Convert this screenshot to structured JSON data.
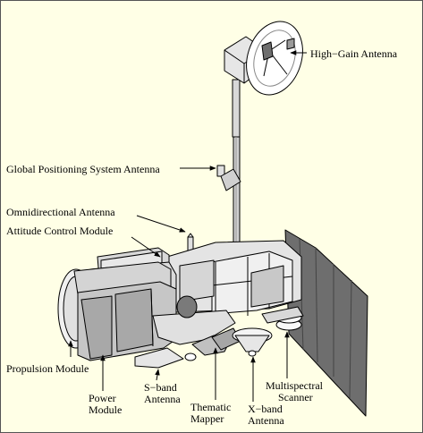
{
  "labels": {
    "high_gain_antenna": "High−Gain Antenna",
    "gps_antenna": "Global Positioning System Antenna",
    "omni_antenna": "Omnidirectional Antenna",
    "attitude_control": "Attitude Control Module",
    "propulsion_module": "Propulsion Module",
    "power_module": [
      "Power",
      "Module"
    ],
    "s_band_antenna": [
      "S−band",
      "Antenna"
    ],
    "thematic_mapper": [
      "Thematic",
      "Mapper"
    ],
    "x_band_antenna": [
      "X−band",
      "Antenna"
    ],
    "multispectral_scanner": [
      "Multispectral",
      "Scanner"
    ]
  },
  "colors": {
    "background": "#FFFFE6",
    "body_fill": "#E0E0E0",
    "light_fill": "#F2F2F2",
    "dark_fill": "#8C8C8C",
    "shadow_fill": "#A8A8A8",
    "solar_panel": "#6E6E6E",
    "outline": "#000000"
  }
}
